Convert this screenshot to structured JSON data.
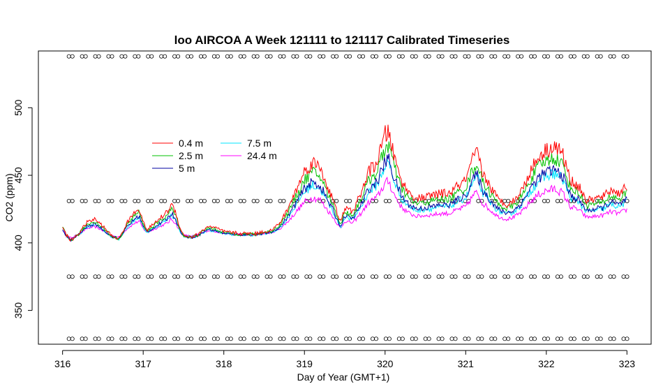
{
  "chart_data": {
    "type": "line",
    "title": "loo AIRCOA A  Week 121111 to 121117  Calibrated Timeseries",
    "xlabel": "Day of Year (GMT+1)",
    "ylabel": "CO2 (ppm)",
    "xlim": [
      315.7,
      323.3
    ],
    "ylim": [
      325,
      542
    ],
    "x_ticks": [
      316,
      317,
      318,
      319,
      320,
      321,
      322,
      323
    ],
    "y_ticks": [
      350,
      400,
      450,
      500
    ],
    "grid": false,
    "legend_position": "upper-left inside plot",
    "series": [
      {
        "name": "0.4 m",
        "color": "#ff0000"
      },
      {
        "name": "2.5 m",
        "color": "#00c000"
      },
      {
        "name": "5 m",
        "color": "#0000a0"
      },
      {
        "name": "7.5 m",
        "color": "#00e5ff"
      },
      {
        "name": "24.4 m",
        "color": "#ff00ff"
      }
    ],
    "base_profile": {
      "x": [
        316.0,
        316.05,
        316.1,
        316.15,
        316.2,
        316.3,
        316.4,
        316.5,
        316.6,
        316.7,
        316.8,
        316.9,
        316.95,
        317.0,
        317.05,
        317.1,
        317.2,
        317.3,
        317.35,
        317.4,
        317.45,
        317.5,
        317.6,
        317.7,
        317.8,
        317.9,
        318.0,
        318.2,
        318.4,
        318.6,
        318.7,
        318.8,
        318.9,
        319.0,
        319.1,
        319.2,
        319.3,
        319.35,
        319.4,
        319.45,
        319.5,
        319.6,
        319.7,
        319.8,
        319.9,
        320.0,
        320.05,
        320.1,
        320.2,
        320.3,
        320.4,
        320.5,
        320.6,
        320.7,
        320.8,
        320.9,
        321.0,
        321.1,
        321.15,
        321.2,
        321.3,
        321.4,
        321.5,
        321.6,
        321.7,
        321.8,
        321.9,
        322.0,
        322.1,
        322.2,
        322.3,
        322.4,
        322.5,
        322.6,
        322.7,
        322.8,
        322.9,
        323.0
      ],
      "y": [
        410,
        405,
        402,
        404,
        406,
        412,
        414,
        410,
        405,
        403,
        412,
        418,
        420,
        412,
        408,
        410,
        414,
        418,
        422,
        418,
        410,
        405,
        404,
        406,
        410,
        409,
        407,
        406,
        406,
        408,
        412,
        420,
        430,
        440,
        445,
        442,
        430,
        425,
        418,
        412,
        420,
        418,
        428,
        440,
        445,
        460,
        462,
        450,
        435,
        428,
        425,
        426,
        427,
        428,
        428,
        432,
        435,
        448,
        450,
        440,
        432,
        425,
        422,
        424,
        430,
        440,
        448,
        452,
        454,
        450,
        435,
        432,
        424,
        425,
        426,
        430,
        428,
        432
      ]
    },
    "series_offsets": {
      "0.4 m": {
        "base": 3,
        "peak_scale": 1.35
      },
      "2.5 m": {
        "base": 1.5,
        "peak_scale": 1.18
      },
      "5 m": {
        "base": 0,
        "peak_scale": 1.0
      },
      "7.5 m": {
        "base": -0.5,
        "peak_scale": 0.95
      },
      "24.4 m": {
        "base": -1.5,
        "peak_scale": 0.7
      }
    },
    "calibration_markers": {
      "levels": [
        538,
        431,
        375,
        329
      ],
      "count_per_row": 43
    }
  }
}
